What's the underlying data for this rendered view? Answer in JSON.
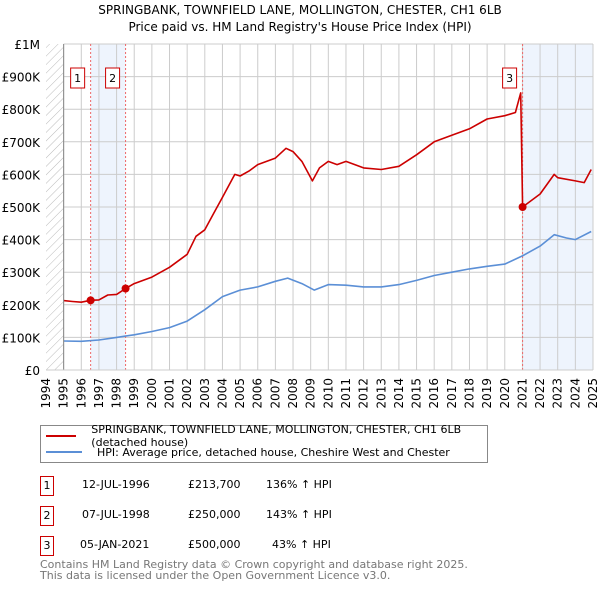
{
  "title_line1": "SPRINGBANK, TOWNFIELD LANE, MOLLINGTON, CHESTER, CH1 6LB",
  "title_line2": "Price paid vs. HM Land Registry's House Price Index (HPI)",
  "colors": {
    "property": "#cc0000",
    "hpi": "#5b8fd6",
    "shade": "#eef4fd",
    "grid": "#cccccc"
  },
  "chart_data": {
    "type": "line",
    "title": "SPRINGBANK, TOWNFIELD LANE, MOLLINGTON, CHESTER, CH1 6LB — Price paid vs. HM Land Registry's House Price Index (HPI)",
    "xlim": [
      1994,
      2025
    ],
    "ylim": [
      0,
      1000000
    ],
    "x_ticks": [
      "1994",
      "1995",
      "1996",
      "1997",
      "1998",
      "1999",
      "2000",
      "2001",
      "2002",
      "2003",
      "2004",
      "2005",
      "2006",
      "2007",
      "2008",
      "2009",
      "2010",
      "2011",
      "2012",
      "2013",
      "2014",
      "2015",
      "2016",
      "2017",
      "2018",
      "2019",
      "2020",
      "2021",
      "2022",
      "2023",
      "2024",
      "2025"
    ],
    "y_ticks": [
      {
        "v": 0,
        "label": "£0"
      },
      {
        "v": 100000,
        "label": "£100K"
      },
      {
        "v": 200000,
        "label": "£200K"
      },
      {
        "v": 300000,
        "label": "£300K"
      },
      {
        "v": 400000,
        "label": "£400K"
      },
      {
        "v": 500000,
        "label": "£500K"
      },
      {
        "v": 600000,
        "label": "£600K"
      },
      {
        "v": 700000,
        "label": "£700K"
      },
      {
        "v": 800000,
        "label": "£800K"
      },
      {
        "v": 900000,
        "label": "£900K"
      },
      {
        "v": 1000000,
        "label": "£1M"
      }
    ],
    "grid": true,
    "series": [
      {
        "name": "SPRINGBANK, TOWNFIELD LANE, MOLLINGTON, CHESTER, CH1 6LB (detached house)",
        "color": "#cc0000",
        "x": [
          1995,
          1995.5,
          1996,
          1996.53,
          1997,
          1997.5,
          1998,
          1998.51,
          1999,
          2000,
          2001,
          2002,
          2002.5,
          2003,
          2003.5,
          2004,
          2004.7,
          2005,
          2005.5,
          2006,
          2007,
          2007.6,
          2008,
          2008.5,
          2009.1,
          2009.5,
          2010,
          2010.5,
          2011,
          2012,
          2013,
          2014,
          2015,
          2015.5,
          2016,
          2017,
          2018,
          2019,
          2020,
          2020.6,
          2020.9,
          2021.01,
          2022,
          2022.8,
          2023,
          2024,
          2024.5,
          2024.9
        ],
        "y": [
          213000,
          210000,
          208000,
          213700,
          215000,
          230000,
          232000,
          250000,
          265000,
          285000,
          315000,
          355000,
          410000,
          430000,
          480000,
          530000,
          600000,
          595000,
          610000,
          630000,
          650000,
          680000,
          670000,
          640000,
          580000,
          620000,
          640000,
          630000,
          640000,
          620000,
          615000,
          625000,
          660000,
          680000,
          700000,
          720000,
          740000,
          770000,
          780000,
          790000,
          850000,
          500000,
          540000,
          600000,
          590000,
          580000,
          575000,
          615000
        ]
      },
      {
        "name": "HPI: Average price, detached house, Cheshire West and Chester",
        "color": "#5b8fd6",
        "x": [
          1995,
          1996,
          1997,
          1998,
          1999,
          2000,
          2001,
          2002,
          2003,
          2004,
          2005,
          2006,
          2007,
          2007.7,
          2008.5,
          2009.2,
          2010,
          2011,
          2012,
          2013,
          2014,
          2015,
          2016,
          2017,
          2018,
          2019,
          2020,
          2021,
          2022,
          2022.8,
          2023.5,
          2024,
          2024.9
        ],
        "y": [
          89000,
          88000,
          92000,
          100000,
          108000,
          118000,
          130000,
          150000,
          185000,
          225000,
          245000,
          255000,
          272000,
          282000,
          265000,
          245000,
          262000,
          260000,
          255000,
          255000,
          262000,
          275000,
          290000,
          300000,
          310000,
          318000,
          325000,
          350000,
          380000,
          415000,
          405000,
          400000,
          425000
        ]
      }
    ],
    "sales": [
      {
        "n": "1",
        "x": 1996.53,
        "y": 213700
      },
      {
        "n": "2",
        "x": 1998.51,
        "y": 250000
      },
      {
        "n": "3",
        "x": 2021.01,
        "y": 500000
      }
    ],
    "legend_position": "below"
  },
  "legend": {
    "property": "SPRINGBANK, TOWNFIELD LANE, MOLLINGTON, CHESTER, CH1 6LB (detached house)",
    "hpi": "HPI: Average price, detached house, Cheshire West and Chester"
  },
  "transactions": [
    {
      "n": "1",
      "date": "12-JUL-1996",
      "price": "£213,700",
      "hpi": "136% ↑ HPI"
    },
    {
      "n": "2",
      "date": "07-JUL-1998",
      "price": "£250,000",
      "hpi": "143% ↑ HPI"
    },
    {
      "n": "3",
      "date": "05-JAN-2021",
      "price": "£500,000",
      "hpi": "43% ↑ HPI"
    }
  ],
  "footer_line1": "Contains HM Land Registry data © Crown copyright and database right 2025.",
  "footer_line2": "This data is licensed under the Open Government Licence v3.0."
}
